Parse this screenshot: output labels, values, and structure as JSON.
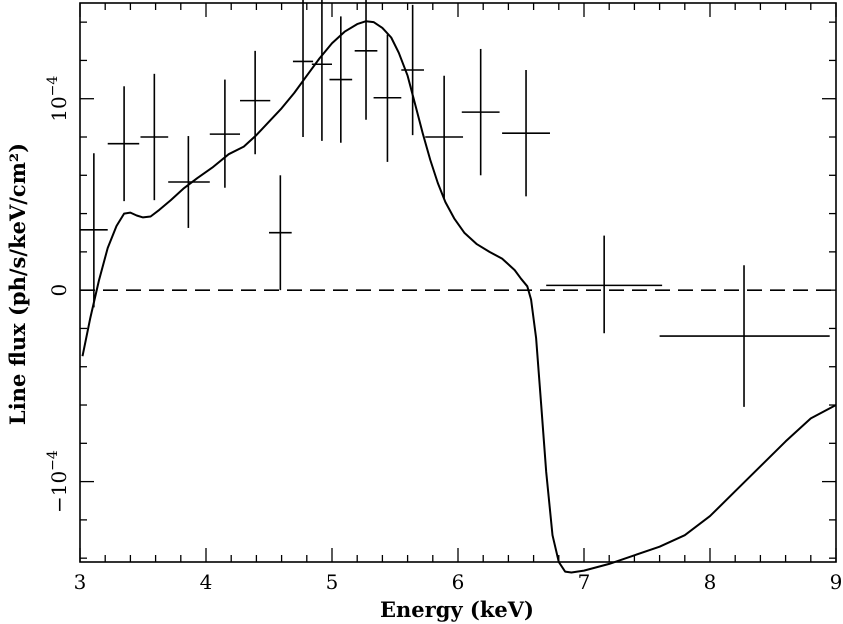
{
  "chart_data": {
    "type": "scatter",
    "xlabel": "Energy (keV)",
    "ylabel": "Line flux (ph/s/keV/cm²)",
    "xlim": [
      3,
      9
    ],
    "ylim": [
      -0.000142,
      0.00015
    ],
    "x_ticks": [
      {
        "value": 3,
        "label": "3"
      },
      {
        "value": 4,
        "label": "4"
      },
      {
        "value": 5,
        "label": "5"
      },
      {
        "value": 6,
        "label": "6"
      },
      {
        "value": 7,
        "label": "7"
      },
      {
        "value": 8,
        "label": "8"
      },
      {
        "value": 9,
        "label": "9"
      }
    ],
    "y_ticks": [
      {
        "value": -0.0001,
        "mantissa": "−10",
        "exponent": "−4"
      },
      {
        "value": 0,
        "mantissa": "0",
        "exponent": ""
      },
      {
        "value": 0.0001,
        "mantissa": "10",
        "exponent": "−4"
      }
    ],
    "zero_line": 0,
    "data_points": [
      {
        "x": 3.11,
        "xerr": [
          0.11,
          0.11
        ],
        "y": 3.15e-05,
        "yerr": [
          4.05e-05,
          4e-05
        ]
      },
      {
        "x": 3.35,
        "xerr": [
          0.13,
          0.12
        ],
        "y": 7.65e-05,
        "yerr": [
          3e-05,
          3e-05
        ]
      },
      {
        "x": 3.59,
        "xerr": [
          0.11,
          0.11
        ],
        "y": 8e-05,
        "yerr": [
          3.3e-05,
          3.3e-05
        ]
      },
      {
        "x": 3.86,
        "xerr": [
          0.16,
          0.17
        ],
        "y": 5.65e-05,
        "yerr": [
          2.4e-05,
          2.4e-05
        ]
      },
      {
        "x": 4.15,
        "xerr": [
          0.12,
          0.12
        ],
        "y": 8.15e-05,
        "yerr": [
          2.8e-05,
          2.85e-05
        ]
      },
      {
        "x": 4.39,
        "xerr": [
          0.12,
          0.12
        ],
        "y": 9.9e-05,
        "yerr": [
          2.8e-05,
          2.6e-05
        ]
      },
      {
        "x": 4.59,
        "xerr": [
          0.09,
          0.09
        ],
        "y": 3e-05,
        "yerr": [
          3e-05,
          3e-05
        ]
      },
      {
        "x": 4.77,
        "xerr": [
          0.08,
          0.08
        ],
        "y": 0.0001195,
        "yerr": [
          3.95e-05,
          3.7e-05
        ]
      },
      {
        "x": 4.92,
        "xerr": [
          0.08,
          0.08
        ],
        "y": 0.000118,
        "yerr": [
          4e-05,
          4e-05
        ]
      },
      {
        "x": 5.07,
        "xerr": [
          0.09,
          0.09
        ],
        "y": 0.00011,
        "yerr": [
          3.3e-05,
          3.3e-05
        ]
      },
      {
        "x": 5.27,
        "xerr": [
          0.09,
          0.09
        ],
        "y": 0.000125,
        "yerr": [
          3.6e-05,
          3.6e-05
        ]
      },
      {
        "x": 5.44,
        "xerr": [
          0.11,
          0.11
        ],
        "y": 0.0001005,
        "yerr": [
          3.35e-05,
          3.3e-05
        ]
      },
      {
        "x": 5.64,
        "xerr": [
          0.09,
          0.09
        ],
        "y": 0.000115,
        "yerr": [
          3.4e-05,
          3.4e-05
        ]
      },
      {
        "x": 5.89,
        "xerr": [
          0.15,
          0.15
        ],
        "y": 8e-05,
        "yerr": [
          3.2e-05,
          3.2e-05
        ]
      },
      {
        "x": 6.18,
        "xerr": [
          0.15,
          0.15
        ],
        "y": 9.3e-05,
        "yerr": [
          3.3e-05,
          3.3e-05
        ]
      },
      {
        "x": 6.54,
        "xerr": [
          0.19,
          0.19
        ],
        "y": 8.2e-05,
        "yerr": [
          3.3e-05,
          3.3e-05
        ]
      },
      {
        "x": 7.16,
        "xerr": [
          0.46,
          0.46
        ],
        "y": 2.5e-06,
        "yerr": [
          2.5e-05,
          2.6e-05
        ]
      },
      {
        "x": 8.27,
        "xerr": [
          0.67,
          0.68
        ],
        "y": -2.4e-05,
        "yerr": [
          3.7e-05,
          3.7e-05
        ]
      }
    ],
    "model_curve": {
      "x": [
        3.02,
        3.08,
        3.15,
        3.22,
        3.29,
        3.35,
        3.4,
        3.45,
        3.5,
        3.56,
        3.63,
        3.72,
        3.82,
        3.93,
        4.05,
        4.18,
        4.3,
        4.4,
        4.5,
        4.6,
        4.7,
        4.8,
        4.9,
        5.0,
        5.1,
        5.2,
        5.27,
        5.33,
        5.4,
        5.47,
        5.53,
        5.6,
        5.66,
        5.72,
        5.78,
        5.84,
        5.9,
        5.97,
        6.05,
        6.15,
        6.25,
        6.35,
        6.45,
        6.5,
        6.55,
        6.58,
        6.62,
        6.66,
        6.7,
        6.75,
        6.8,
        6.85,
        6.9,
        7.0,
        7.2,
        7.4,
        7.6,
        7.8,
        8.0,
        8.2,
        8.4,
        8.6,
        8.8,
        9.0
      ],
      "y": [
        -3.45e-05,
        -1.5e-05,
        5e-06,
        2.2e-05,
        3.35e-05,
        4e-05,
        4.05e-05,
        3.9e-05,
        3.8e-05,
        3.85e-05,
        4.2e-05,
        4.7e-05,
        5.3e-05,
        5.85e-05,
        6.4e-05,
        7.1e-05,
        7.5e-05,
        8.1e-05,
        8.8e-05,
        9.5e-05,
        0.000103,
        0.000112,
        0.000121,
        0.000129,
        0.000135,
        0.000139,
        0.0001405,
        0.00014,
        0.000137,
        0.000132,
        0.000124,
        0.000112,
        9.7e-05,
        8.2e-05,
        6.8e-05,
        5.6e-05,
        4.6e-05,
        3.75e-05,
        3e-05,
        2.4e-05,
        2e-05,
        1.65e-05,
        1.05e-05,
        6e-06,
        2e-06,
        -5e-06,
        -2.5e-05,
        -6e-05,
        -9.5e-05,
        -0.000128,
        -0.000142,
        -0.000147,
        -0.0001475,
        -0.0001465,
        -0.000143,
        -0.0001385,
        -0.000134,
        -0.000128,
        -0.000118,
        -0.000105,
        -9.2e-05,
        -7.9e-05,
        -6.7e-05,
        -6e-05
      ]
    }
  }
}
